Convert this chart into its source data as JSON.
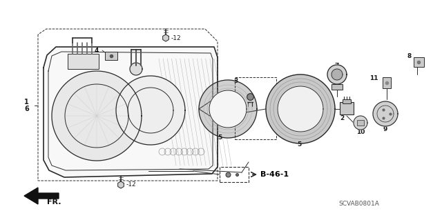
{
  "bg_color": "#ffffff",
  "line_color": "#2a2a2a",
  "text_color": "#1a1a1a",
  "fig_width": 6.4,
  "fig_height": 3.19,
  "dpi": 100,
  "watermark": "SCVAB0801A",
  "ref_label": "B-46-1"
}
